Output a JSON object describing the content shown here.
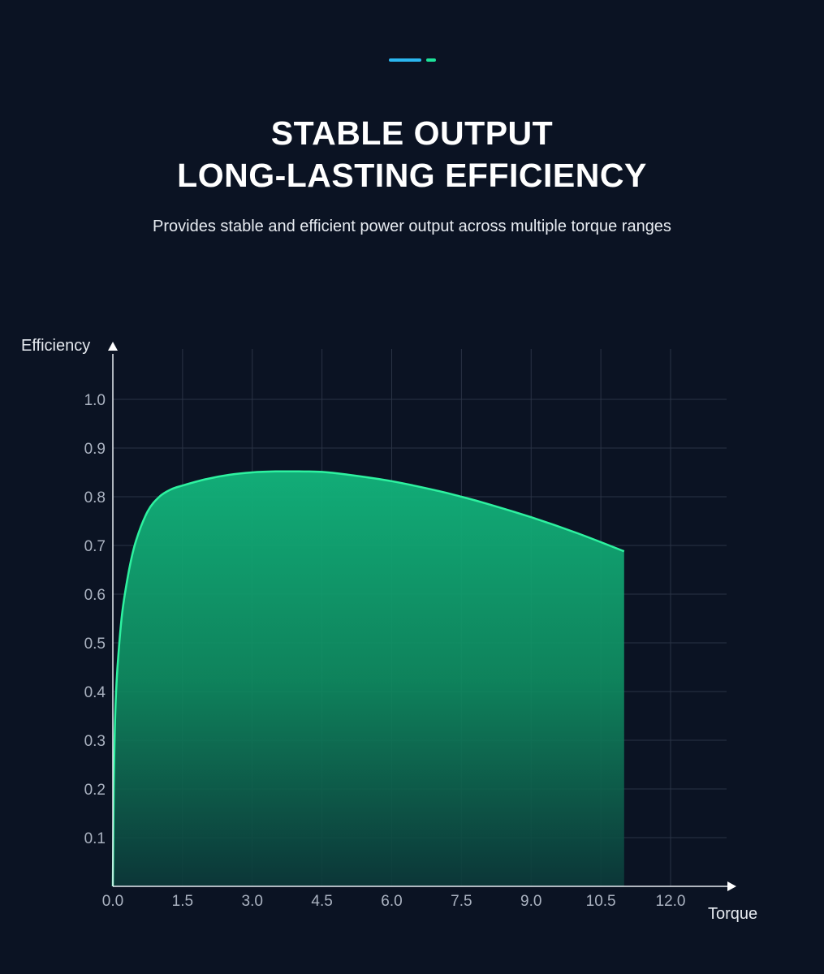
{
  "header": {
    "title_line1": "STABLE OUTPUT",
    "title_line2": "LONG-LASTING EFFICIENCY",
    "subtitle": "Provides stable and efficient power output across multiple torque ranges"
  },
  "colors": {
    "background": "#0b1323",
    "accent_blue": "#2bb7f0",
    "accent_green": "#1de39a",
    "curve": "#2ef2a0",
    "fill": "#10a06e"
  },
  "chart_data": {
    "type": "area",
    "xlabel": "Torque",
    "ylabel": "Efficiency",
    "x_ticks": [
      "0.0",
      "1.5",
      "3.0",
      "4.5",
      "6.0",
      "7.5",
      "9.0",
      "10.5",
      "12.0"
    ],
    "y_ticks": [
      "0.1",
      "0.2",
      "0.3",
      "0.4",
      "0.5",
      "0.6",
      "0.7",
      "0.8",
      "0.9",
      "1.0"
    ],
    "xlim": [
      0,
      13.2
    ],
    "ylim": [
      0,
      1.1
    ],
    "grid": true,
    "series": [
      {
        "x": [
          0.0,
          0.02,
          0.05,
          0.1,
          0.2,
          0.35,
          0.5,
          0.75,
          1.0,
          1.25,
          1.5,
          2.0,
          2.5,
          3.0,
          3.5,
          4.0,
          4.5,
          5.0,
          6.0,
          7.0,
          7.5,
          8.0,
          9.0,
          10.0,
          11.0
        ],
        "y": [
          0.0,
          0.2,
          0.35,
          0.45,
          0.56,
          0.65,
          0.71,
          0.77,
          0.8,
          0.815,
          0.823,
          0.836,
          0.845,
          0.85,
          0.852,
          0.852,
          0.851,
          0.846,
          0.832,
          0.812,
          0.8,
          0.787,
          0.758,
          0.725,
          0.688
        ]
      }
    ]
  }
}
